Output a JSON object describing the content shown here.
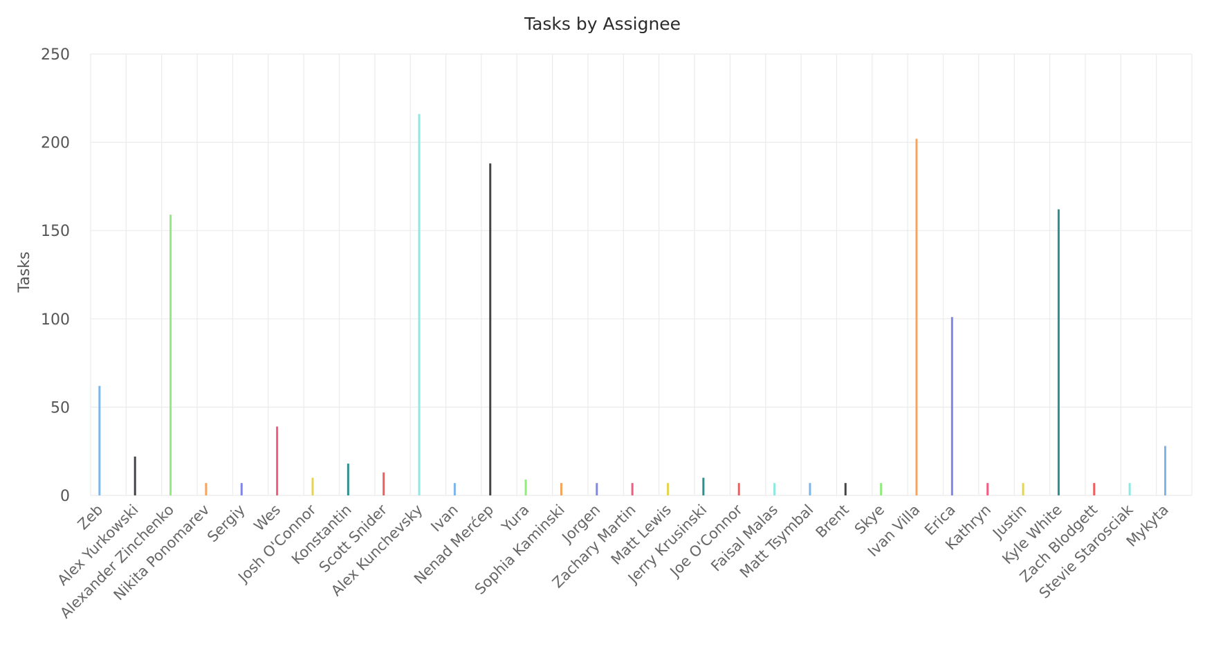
{
  "chart_data": {
    "type": "bar",
    "title": "Tasks by Assignee",
    "xlabel": "",
    "ylabel": "Tasks",
    "ylim": [
      0,
      250
    ],
    "yticks": [
      0,
      50,
      100,
      150,
      200,
      250
    ],
    "grid": true,
    "categories": [
      "Zeb",
      "Alex Yurkowski",
      "Alexander Zinchenko",
      "Nikita Ponomarev",
      "Sergiy",
      "Wes",
      "Josh O'Connor",
      "Konstantin",
      "Scott Snider",
      "Alex Kunchevsky",
      "Ivan",
      "Nenad Merćep",
      "Yura",
      "Sophia Kaminski",
      "Jorgen",
      "Zachary Martin",
      "Matt Lewis",
      "Jerry Krusinski",
      "Joe O'Connor",
      "Faisal Malas",
      "Matt Tsymbal",
      "Brent",
      "Skye",
      "Ivan Villa",
      "Erica",
      "Kathryn",
      "Justin",
      "Kyle White",
      "Zach Blodgett",
      "Stevie Starosciak",
      "Mykyta"
    ],
    "values": [
      62,
      22,
      159,
      7,
      7,
      39,
      10,
      18,
      13,
      216,
      7,
      188,
      9,
      7,
      7,
      7,
      7,
      10,
      7,
      7,
      7,
      7,
      7,
      202,
      101,
      7,
      7,
      162,
      7,
      7,
      28
    ],
    "colors": [
      "#7cb5ec",
      "#434348",
      "#90ed7d",
      "#f7a35c",
      "#8085e9",
      "#f15c80",
      "#e4d354",
      "#2b908f",
      "#f45b5b",
      "#91e8e1",
      "#7cb5ec",
      "#434348",
      "#90ed7d",
      "#f7a35c",
      "#8085e9",
      "#f15c80",
      "#e4d354",
      "#2b908f",
      "#f45b5b",
      "#91e8e1",
      "#7cb5ec",
      "#434348",
      "#90ed7d",
      "#f7a35c",
      "#8085e9",
      "#f15c80",
      "#e4d354",
      "#2b908f",
      "#f45b5b",
      "#91e8e1",
      "#7cb5ec"
    ]
  }
}
